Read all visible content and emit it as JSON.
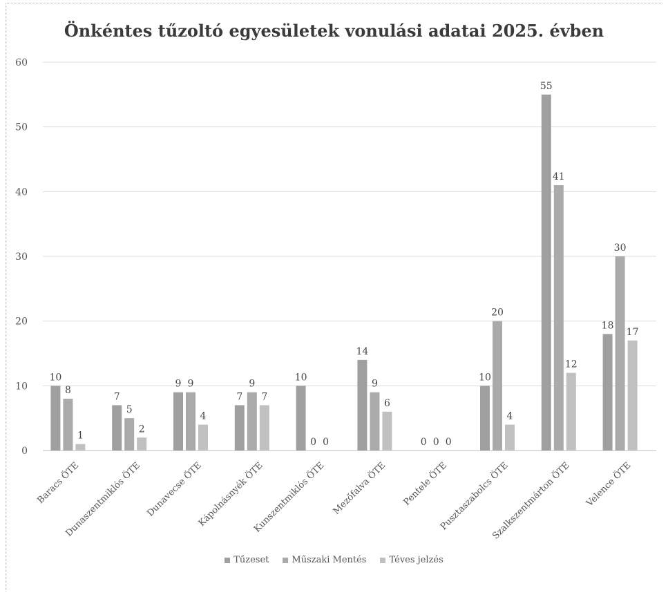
{
  "chart_data": {
    "type": "bar",
    "title": "Önkéntes tűzoltó egyesületek vonulási adatai 2025. évben",
    "categories": [
      "Baracs ÖTE",
      "Dunaszentmiklós ÖTE",
      "Dunavecse ÖTE",
      "Kápolnásnyék ÖTE",
      "Kunszentmiklós ÖTE",
      "Mezőfalva ÖTE",
      "Pentele ÖTE",
      "Pusztaszabolcs ÖTE",
      "Szalkszentmárton ÖTE",
      "Velence ÖTE"
    ],
    "series": [
      {
        "name": "Tűzeset",
        "values": [
          10,
          7,
          9,
          7,
          10,
          14,
          0,
          10,
          55,
          18
        ],
        "color": "#9f9f9f"
      },
      {
        "name": "Műszaki Mentés",
        "values": [
          8,
          5,
          9,
          9,
          0,
          9,
          0,
          20,
          41,
          30
        ],
        "color": "#aaaaaa"
      },
      {
        "name": "Téves jelzés",
        "values": [
          1,
          2,
          4,
          7,
          0,
          6,
          0,
          4,
          12,
          17
        ],
        "color": "#c0c0c0"
      }
    ],
    "ylim": [
      0,
      60
    ],
    "yticks": [
      0,
      10,
      20,
      30,
      40,
      50,
      60
    ],
    "grid": true,
    "legend": "bottom"
  }
}
